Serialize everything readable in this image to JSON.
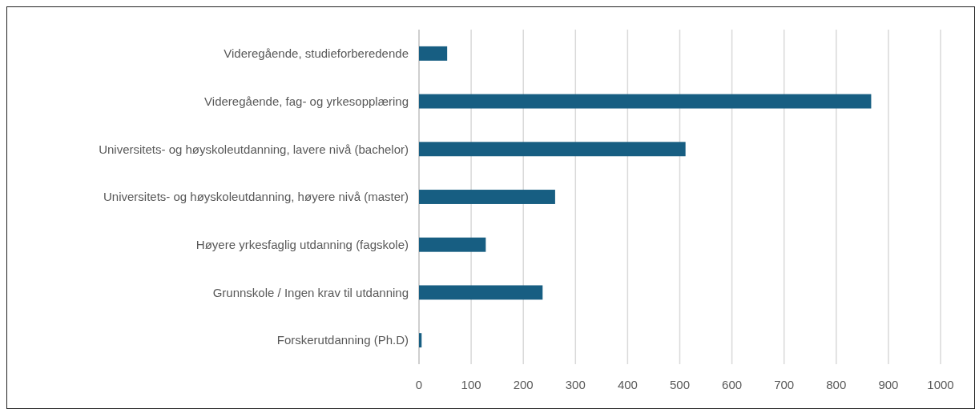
{
  "chart_data": {
    "type": "bar",
    "orientation": "horizontal",
    "categories": [
      "Videregående, studieforberedende",
      "Videregående, fag- og yrkesopplæring",
      "Universitets- og høyskoleutdanning, lavere nivå (bachelor)",
      "Universitets- og høyskoleutdanning, høyere nivå (master)",
      "Høyere yrkesfaglig utdanning (fagskole)",
      "Grunnskole / Ingen krav til utdanning",
      "Forskerutdanning (Ph.D)"
    ],
    "values": [
      54,
      867,
      511,
      261,
      128,
      237,
      5
    ],
    "color": "#175e82",
    "xlim": [
      0,
      1000
    ],
    "xticks": [
      0,
      100,
      200,
      300,
      400,
      500,
      600,
      700,
      800,
      900,
      1000
    ],
    "grid": "x"
  }
}
